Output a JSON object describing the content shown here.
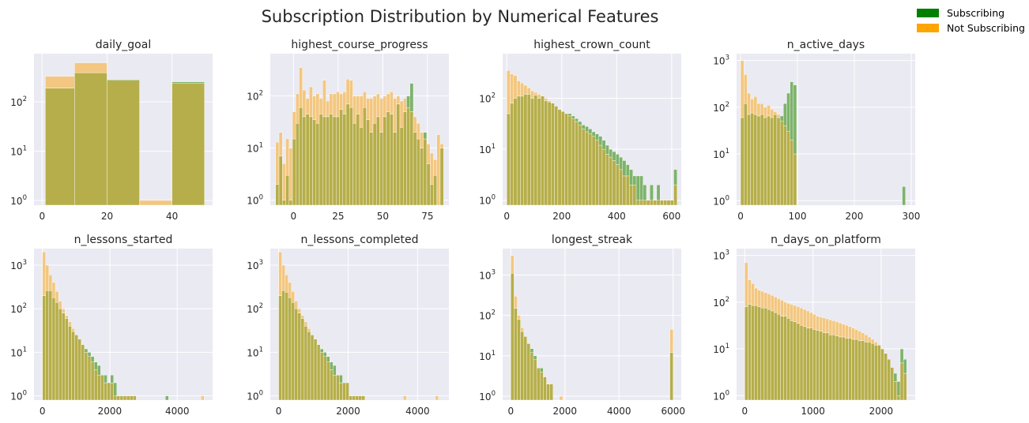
{
  "figure": {
    "title": "Subscription Distribution by Numerical Features",
    "legend": {
      "placement": "top-right",
      "items": [
        {
          "label": "Subscribing",
          "color": "#008000"
        },
        {
          "label": "Not Subscribing",
          "color": "#FFA500"
        }
      ]
    },
    "colors": {
      "panel_bg": "#EAEAF2",
      "grid": "#FFFFFF",
      "subscribing_bar": "#7DB36B",
      "not_subscribing_bar": "#F3C781",
      "overlap_bar": "#B6AE4A"
    }
  },
  "chart_data": [
    {
      "type": "bar",
      "title": "daily_goal",
      "yscale": "log",
      "xlim": [
        -2.5,
        52.5
      ],
      "xticks": [
        0,
        20,
        40
      ],
      "ylim": [
        0.8,
        950
      ],
      "yticks_exp": [
        0,
        1,
        2
      ],
      "bins": [
        [
          1,
          10
        ],
        [
          10,
          20
        ],
        [
          20,
          30
        ],
        [
          30,
          40
        ],
        [
          40,
          50
        ]
      ],
      "series": [
        {
          "name": "Subscribing",
          "values": [
            190,
            390,
            285,
            0,
            255
          ]
        },
        {
          "name": "Not Subscribing",
          "values": [
            330,
            620,
            275,
            1,
            240
          ]
        }
      ]
    },
    {
      "type": "bar",
      "title": "highest_course_progress",
      "yscale": "log",
      "xlim": [
        -13,
        87
      ],
      "xticks": [
        0,
        25,
        50,
        75
      ],
      "ylim": [
        0.8,
        650
      ],
      "yticks_exp": [
        0,
        1,
        2
      ],
      "bin_start": -10,
      "bin_width": 1.88,
      "series": [
        {
          "name": "Subscribing",
          "values": [
            2,
            7,
            1,
            3,
            1,
            15,
            30,
            60,
            40,
            45,
            40,
            35,
            30,
            45,
            40,
            40,
            45,
            40,
            40,
            55,
            45,
            70,
            60,
            30,
            45,
            25,
            60,
            35,
            20,
            30,
            40,
            20,
            40,
            50,
            45,
            20,
            70,
            25,
            50,
            100,
            175,
            20,
            15,
            10,
            20,
            5,
            2,
            3,
            0,
            10
          ]
        },
        {
          "name": "Not Subscribing",
          "values": [
            13,
            20,
            5,
            15,
            10,
            50,
            110,
            350,
            130,
            90,
            150,
            100,
            110,
            90,
            200,
            80,
            110,
            110,
            120,
            110,
            120,
            210,
            200,
            100,
            100,
            100,
            120,
            90,
            90,
            100,
            110,
            90,
            100,
            110,
            120,
            90,
            100,
            80,
            90,
            60,
            50,
            40,
            30,
            20,
            15,
            12,
            8,
            6,
            18,
            12
          ]
        }
      ]
    },
    {
      "type": "bar",
      "title": "highest_crown_count",
      "yscale": "log",
      "xlim": [
        -15,
        635
      ],
      "xticks": [
        0,
        200,
        400,
        600
      ],
      "ylim": [
        0.8,
        750
      ],
      "yticks_exp": [
        0,
        1,
        2
      ],
      "bin_start": 0,
      "bin_width": 12.4,
      "series": [
        {
          "name": "Subscribing",
          "values": [
            50,
            80,
            100,
            110,
            110,
            120,
            120,
            100,
            115,
            100,
            110,
            90,
            85,
            80,
            70,
            60,
            55,
            50,
            50,
            45,
            40,
            35,
            30,
            28,
            25,
            22,
            20,
            18,
            15,
            12,
            10,
            9,
            8,
            7,
            6,
            5,
            4,
            3,
            3,
            3,
            2,
            1,
            2,
            1,
            2,
            1,
            1,
            1,
            1,
            4
          ]
        },
        {
          "name": "Not Subscribing",
          "values": [
            350,
            300,
            280,
            220,
            200,
            180,
            160,
            140,
            130,
            120,
            110,
            100,
            90,
            80,
            70,
            60,
            55,
            50,
            45,
            40,
            35,
            30,
            25,
            22,
            20,
            18,
            15,
            12,
            10,
            8,
            7,
            6,
            5,
            4,
            3,
            3,
            2,
            2,
            1,
            1,
            1,
            1,
            1,
            1,
            1,
            1,
            1,
            1,
            1,
            2
          ]
        }
      ]
    },
    {
      "type": "bar",
      "title": "n_active_days",
      "yscale": "log",
      "xlim": [
        -7,
        307
      ],
      "xticks": [
        0,
        100,
        200,
        300
      ],
      "ylim": [
        0.8,
        1400
      ],
      "yticks_exp": [
        0,
        1,
        2,
        3
      ],
      "bin_start": 0,
      "bin_width": 5.8,
      "series": [
        {
          "name": "Subscribing",
          "values": [
            60,
            120,
            70,
            75,
            70,
            65,
            70,
            60,
            65,
            60,
            70,
            60,
            65,
            120,
            200,
            350,
            300,
            0,
            0,
            0,
            0,
            0,
            0,
            0,
            0,
            0,
            0,
            0,
            0,
            0,
            0,
            0,
            0,
            0,
            0,
            0,
            0,
            0,
            0,
            0,
            0,
            0,
            0,
            0,
            0,
            0,
            0,
            0,
            0,
            2
          ]
        },
        {
          "name": "Not Subscribing",
          "values": [
            1000,
            500,
            200,
            150,
            170,
            120,
            120,
            100,
            110,
            90,
            80,
            70,
            50,
            40,
            30,
            20,
            10,
            0,
            0,
            0,
            0,
            0,
            0,
            0,
            0,
            0,
            0,
            0,
            0,
            0,
            0,
            0,
            0,
            0,
            0,
            0,
            0,
            0,
            0,
            0,
            0,
            0,
            0,
            0,
            0,
            0,
            0,
            0,
            0,
            0
          ]
        }
      ]
    },
    {
      "type": "bar",
      "title": "n_lessons_started",
      "yscale": "log",
      "xlim": [
        -250,
        5050
      ],
      "xticks": [
        0,
        2000,
        4000
      ],
      "ylim": [
        0.8,
        2400
      ],
      "yticks_exp": [
        0,
        1,
        2,
        3
      ],
      "bin_start": 0,
      "bin_width": 96,
      "series": [
        {
          "name": "Subscribing",
          "values": [
            200,
            260,
            260,
            180,
            140,
            100,
            80,
            60,
            40,
            30,
            25,
            20,
            15,
            12,
            10,
            8,
            6,
            5,
            3,
            3,
            2,
            3,
            2,
            1,
            1,
            1,
            1,
            1,
            1,
            0,
            0,
            0,
            0,
            0,
            0,
            0,
            0,
            0,
            1,
            0,
            0,
            0,
            0,
            0,
            0,
            0,
            0,
            0,
            0,
            0
          ]
        },
        {
          "name": "Not Subscribing",
          "values": [
            2000,
            1000,
            600,
            400,
            250,
            150,
            100,
            70,
            50,
            35,
            25,
            20,
            15,
            10,
            8,
            6,
            4,
            3,
            3,
            2,
            2,
            2,
            1,
            1,
            1,
            1,
            1,
            1,
            1,
            0,
            0,
            0,
            0,
            0,
            0,
            0,
            0,
            0,
            0,
            0,
            0,
            0,
            0,
            0,
            0,
            0,
            0,
            0,
            0,
            1
          ]
        }
      ]
    },
    {
      "type": "bar",
      "title": "n_lessons_completed",
      "yscale": "log",
      "xlim": [
        -240,
        4900
      ],
      "xticks": [
        0,
        2000,
        4000
      ],
      "ylim": [
        0.8,
        2400
      ],
      "yticks_exp": [
        0,
        1,
        2,
        3
      ],
      "bin_start": 0,
      "bin_width": 92,
      "series": [
        {
          "name": "Subscribing",
          "values": [
            200,
            260,
            240,
            180,
            140,
            100,
            80,
            60,
            40,
            30,
            25,
            20,
            15,
            12,
            10,
            8,
            6,
            5,
            3,
            3,
            2,
            2,
            1,
            1,
            1,
            1,
            1,
            0,
            0,
            0,
            0,
            0,
            0,
            0,
            0,
            0,
            0,
            0,
            0,
            0,
            0,
            0,
            0,
            0,
            0,
            0,
            0,
            0,
            0,
            0
          ]
        },
        {
          "name": "Not Subscribing",
          "values": [
            2000,
            1000,
            600,
            400,
            250,
            150,
            100,
            70,
            50,
            35,
            25,
            20,
            15,
            10,
            8,
            6,
            4,
            3,
            3,
            2,
            2,
            2,
            1,
            1,
            1,
            1,
            1,
            0,
            0,
            0,
            0,
            0,
            0,
            0,
            0,
            0,
            0,
            0,
            0,
            1,
            0,
            0,
            0,
            0,
            0,
            0,
            0,
            0,
            0,
            1
          ]
        }
      ]
    },
    {
      "type": "bar",
      "title": "longest_streak",
      "yscale": "log",
      "xlim": [
        -300,
        6300
      ],
      "xticks": [
        0,
        2000,
        4000,
        6000
      ],
      "ylim": [
        0.8,
        4500
      ],
      "yticks_exp": [
        0,
        1,
        2,
        3
      ],
      "bin_start": 0,
      "bin_width": 120,
      "series": [
        {
          "name": "Subscribing",
          "values": [
            1100,
            150,
            80,
            40,
            30,
            20,
            15,
            10,
            5,
            5,
            3,
            2,
            2,
            0,
            0,
            0,
            0,
            0,
            0,
            0,
            0,
            0,
            0,
            0,
            0,
            0,
            0,
            0,
            0,
            0,
            0,
            0,
            0,
            0,
            0,
            0,
            0,
            0,
            0,
            0,
            0,
            0,
            0,
            0,
            0,
            0,
            0,
            0,
            0,
            12
          ]
        },
        {
          "name": "Not Subscribing",
          "values": [
            3000,
            300,
            100,
            50,
            30,
            20,
            12,
            8,
            5,
            4,
            3,
            2,
            2,
            0,
            0,
            1,
            0,
            0,
            0,
            0,
            0,
            0,
            0,
            0,
            0,
            0,
            0,
            0,
            0,
            0,
            0,
            0,
            0,
            0,
            0,
            0,
            0,
            0,
            0,
            0,
            0,
            0,
            0,
            0,
            0,
            0,
            0,
            0,
            0,
            45
          ]
        }
      ]
    },
    {
      "type": "bar",
      "title": "n_days_on_platform",
      "yscale": "log",
      "xlim": [
        -120,
        2500
      ],
      "xticks": [
        0,
        1000,
        2000
      ],
      "ylim": [
        0.8,
        1400
      ],
      "yticks_exp": [
        0,
        1,
        2,
        3
      ],
      "bin_start": 0,
      "bin_width": 47.5,
      "series": [
        {
          "name": "Subscribing",
          "values": [
            80,
            90,
            85,
            85,
            80,
            75,
            75,
            70,
            65,
            60,
            55,
            50,
            50,
            45,
            40,
            38,
            35,
            32,
            30,
            28,
            28,
            26,
            25,
            24,
            22,
            22,
            20,
            20,
            19,
            18,
            18,
            17,
            17,
            16,
            16,
            15,
            15,
            14,
            14,
            13,
            12,
            12,
            10,
            8,
            6,
            4,
            3,
            2,
            10,
            6
          ]
        },
        {
          "name": "Not Subscribing",
          "values": [
            700,
            300,
            250,
            200,
            180,
            170,
            160,
            150,
            140,
            130,
            120,
            110,
            100,
            95,
            90,
            85,
            80,
            75,
            70,
            65,
            60,
            55,
            50,
            48,
            46,
            44,
            42,
            40,
            38,
            36,
            34,
            32,
            30,
            28,
            26,
            24,
            22,
            20,
            18,
            16,
            14,
            12,
            10,
            8,
            6,
            4,
            2,
            1,
            5,
            3
          ]
        }
      ]
    }
  ]
}
